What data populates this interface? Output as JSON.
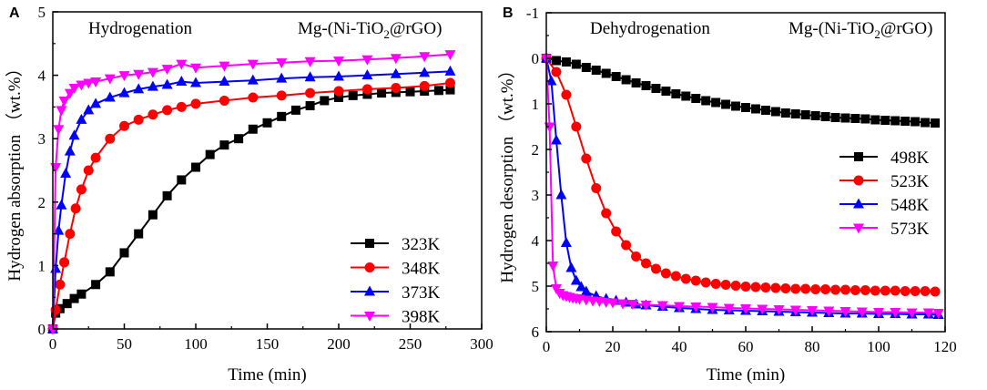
{
  "chart_data": [
    {
      "type": "line",
      "panel_label": "A",
      "title": "Hydrogenation",
      "material": {
        "base": "Mg-(Ni-TiO",
        "sub": "2",
        "tail": "@rGO)"
      },
      "xlabel": "Time (min)",
      "ylabel": "Hydrogen  absorption （wt.%）",
      "xlim": [
        0,
        300
      ],
      "ylim": [
        0,
        5
      ],
      "xticks": [
        "0",
        "50",
        "100",
        "150",
        "200",
        "250",
        "300"
      ],
      "yticks": [
        "0",
        "1",
        "2",
        "3",
        "4",
        "5"
      ],
      "legend_position": "bottom-right",
      "series": [
        {
          "name": "323K",
          "color": "#000000",
          "marker": "square",
          "x": [
            0,
            2,
            5,
            10,
            15,
            20,
            30,
            40,
            50,
            60,
            70,
            80,
            90,
            100,
            110,
            120,
            130,
            140,
            150,
            160,
            170,
            180,
            190,
            200,
            210,
            220,
            230,
            240,
            250,
            260,
            270,
            278
          ],
          "y": [
            0,
            0.25,
            0.32,
            0.4,
            0.48,
            0.55,
            0.7,
            0.9,
            1.2,
            1.5,
            1.8,
            2.1,
            2.35,
            2.55,
            2.75,
            2.9,
            3.0,
            3.15,
            3.25,
            3.35,
            3.45,
            3.52,
            3.6,
            3.65,
            3.68,
            3.7,
            3.72,
            3.73,
            3.74,
            3.75,
            3.76,
            3.77
          ]
        },
        {
          "name": "348K",
          "color": "#ff0000",
          "marker": "circle",
          "x": [
            0,
            2,
            5,
            8,
            12,
            16,
            20,
            25,
            30,
            40,
            50,
            60,
            70,
            80,
            90,
            100,
            120,
            140,
            160,
            180,
            200,
            220,
            240,
            260,
            278
          ],
          "y": [
            0,
            0.3,
            0.7,
            1.05,
            1.5,
            1.9,
            2.2,
            2.5,
            2.7,
            3.0,
            3.2,
            3.3,
            3.38,
            3.45,
            3.5,
            3.55,
            3.6,
            3.65,
            3.68,
            3.72,
            3.75,
            3.78,
            3.8,
            3.83,
            3.88
          ]
        },
        {
          "name": "373K",
          "color": "#0000ff",
          "marker": "triangle-up",
          "x": [
            0,
            2,
            4,
            6,
            9,
            12,
            15,
            20,
            25,
            30,
            40,
            50,
            60,
            70,
            80,
            90,
            100,
            120,
            140,
            160,
            180,
            200,
            220,
            240,
            260,
            278
          ],
          "y": [
            0,
            0.95,
            1.55,
            1.95,
            2.45,
            2.8,
            3.05,
            3.3,
            3.45,
            3.55,
            3.65,
            3.72,
            3.78,
            3.82,
            3.85,
            3.9,
            3.88,
            3.9,
            3.92,
            3.95,
            3.97,
            3.98,
            4.0,
            4.02,
            4.04,
            4.06
          ]
        },
        {
          "name": "398K",
          "color": "#ff00ff",
          "marker": "triangle-down",
          "x": [
            0,
            2,
            4,
            6,
            8,
            12,
            15,
            20,
            25,
            30,
            40,
            50,
            60,
            70,
            80,
            90,
            100,
            120,
            140,
            160,
            180,
            200,
            220,
            240,
            260,
            278
          ],
          "y": [
            0,
            2.55,
            3.15,
            3.45,
            3.6,
            3.72,
            3.8,
            3.85,
            3.88,
            3.9,
            3.95,
            4.0,
            4.02,
            4.05,
            4.1,
            4.18,
            4.12,
            4.15,
            4.18,
            4.2,
            4.22,
            4.23,
            4.25,
            4.27,
            4.3,
            4.33
          ]
        }
      ]
    },
    {
      "type": "line",
      "panel_label": "B",
      "title": "Dehydrogenation",
      "material": {
        "base": "Mg-(Ni-TiO",
        "sub": "2",
        "tail": "@rGO)"
      },
      "xlabel": "Time (min)",
      "ylabel": "Hydrogen  desorption （wt.%）",
      "xlim": [
        0,
        120
      ],
      "ylim": [
        -1,
        6
      ],
      "y_inverted": true,
      "xticks": [
        "0",
        "20",
        "40",
        "60",
        "80",
        "100",
        "120"
      ],
      "yticks": [
        "-1",
        "0",
        "1",
        "2",
        "3",
        "4",
        "5",
        "6"
      ],
      "legend_position": "middle-right",
      "series": [
        {
          "name": "498K",
          "color": "#000000",
          "marker": "square",
          "x": [
            0,
            3,
            6,
            9,
            12,
            15,
            18,
            21,
            24,
            27,
            30,
            33,
            36,
            39,
            42,
            45,
            48,
            51,
            54,
            57,
            60,
            63,
            66,
            69,
            72,
            75,
            78,
            81,
            84,
            87,
            90,
            93,
            96,
            99,
            102,
            105,
            108,
            111,
            114,
            117
          ],
          "y": [
            0,
            0.05,
            0.08,
            0.13,
            0.2,
            0.26,
            0.33,
            0.4,
            0.47,
            0.54,
            0.6,
            0.66,
            0.72,
            0.78,
            0.83,
            0.88,
            0.93,
            0.97,
            1.01,
            1.05,
            1.08,
            1.11,
            1.14,
            1.17,
            1.2,
            1.22,
            1.24,
            1.26,
            1.28,
            1.3,
            1.31,
            1.32,
            1.33,
            1.35,
            1.36,
            1.37,
            1.38,
            1.39,
            1.41,
            1.42
          ]
        },
        {
          "name": "523K",
          "color": "#ff0000",
          "marker": "circle",
          "x": [
            0,
            3,
            6,
            9,
            12,
            15,
            18,
            21,
            24,
            27,
            30,
            33,
            36,
            39,
            42,
            45,
            48,
            51,
            54,
            57,
            60,
            63,
            66,
            69,
            72,
            75,
            78,
            81,
            84,
            87,
            90,
            93,
            96,
            99,
            102,
            105,
            108,
            111,
            114,
            117
          ],
          "y": [
            0,
            0.3,
            0.8,
            1.5,
            2.2,
            2.85,
            3.4,
            3.8,
            4.1,
            4.35,
            4.5,
            4.62,
            4.72,
            4.78,
            4.84,
            4.88,
            4.92,
            4.95,
            4.97,
            4.99,
            5.01,
            5.02,
            5.03,
            5.04,
            5.05,
            5.06,
            5.06,
            5.07,
            5.07,
            5.08,
            5.08,
            5.09,
            5.09,
            5.1,
            5.1,
            5.1,
            5.11,
            5.11,
            5.11,
            5.12
          ]
        },
        {
          "name": "548K",
          "color": "#0000ff",
          "marker": "triangle-up",
          "x": [
            0,
            1.5,
            3,
            4.5,
            6,
            7.5,
            9,
            10.5,
            12,
            15,
            18,
            21,
            24,
            27,
            30,
            35,
            40,
            45,
            50,
            55,
            60,
            65,
            70,
            75,
            80,
            85,
            90,
            95,
            100,
            105,
            110,
            115,
            118
          ],
          "y": [
            0,
            0.5,
            1.8,
            3.0,
            4.05,
            4.6,
            4.88,
            5.02,
            5.12,
            5.22,
            5.28,
            5.32,
            5.36,
            5.4,
            5.42,
            5.45,
            5.48,
            5.5,
            5.52,
            5.53,
            5.54,
            5.55,
            5.56,
            5.57,
            5.58,
            5.59,
            5.6,
            5.6,
            5.61,
            5.61,
            5.62,
            5.62,
            5.63
          ]
        },
        {
          "name": "573K",
          "color": "#ff00ff",
          "marker": "triangle-down",
          "x": [
            0,
            1,
            2,
            3,
            4,
            5,
            6,
            7,
            8,
            9,
            10,
            12,
            14,
            16,
            18,
            20,
            23,
            26,
            30,
            35,
            40,
            45,
            50,
            55,
            60,
            65,
            70,
            75,
            80,
            85,
            90,
            95,
            100,
            105,
            110,
            115,
            118
          ],
          "y": [
            0,
            1.5,
            4.55,
            5.05,
            5.15,
            5.2,
            5.22,
            5.24,
            5.26,
            5.27,
            5.28,
            5.3,
            5.32,
            5.33,
            5.35,
            5.36,
            5.38,
            5.39,
            5.41,
            5.42,
            5.44,
            5.45,
            5.46,
            5.48,
            5.49,
            5.5,
            5.51,
            5.52,
            5.53,
            5.54,
            5.55,
            5.56,
            5.57,
            5.57,
            5.58,
            5.58,
            5.59
          ]
        }
      ]
    }
  ]
}
